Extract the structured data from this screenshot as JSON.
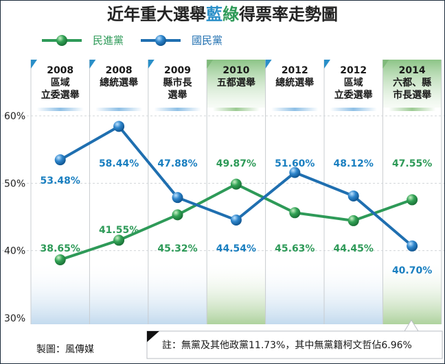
{
  "chart_data": {
    "type": "line",
    "title_parts": [
      {
        "text": "近年重大選舉",
        "highlight": ""
      },
      {
        "text": "藍",
        "highlight": "blue"
      },
      {
        "text": "綠",
        "highlight": "green"
      },
      {
        "text": "得票率走勢圖",
        "highlight": ""
      }
    ],
    "categories": [
      [
        "2008",
        "區域",
        "立委選舉"
      ],
      [
        "2008",
        "總統選舉"
      ],
      [
        "2009",
        "縣市長",
        "選舉"
      ],
      [
        "2010",
        "五都選舉"
      ],
      [
        "2012",
        "總統選舉"
      ],
      [
        "2012",
        "區域",
        "立委選舉"
      ],
      [
        "2014",
        "六都、縣",
        "市長選舉"
      ]
    ],
    "category_theme": [
      "blue",
      "blue",
      "blue",
      "green",
      "blue",
      "blue",
      "green"
    ],
    "ylim": [
      30,
      60
    ],
    "yticks": [
      30,
      40,
      50,
      60
    ],
    "ytick_labels": [
      "30%",
      "40%",
      "50%",
      "60%"
    ],
    "grid": true,
    "legend_position": "top-left",
    "series": [
      {
        "name": "民進黨",
        "color": "#2e9a58",
        "values": [
          38.65,
          41.55,
          45.32,
          49.87,
          45.63,
          44.45,
          47.55
        ],
        "labels": [
          "38.65%",
          "41.55%",
          "45.32%",
          "49.87%",
          "45.63%",
          "44.45%",
          "47.55%"
        ]
      },
      {
        "name": "國民黨",
        "color": "#1f6fb0",
        "values": [
          53.48,
          58.44,
          47.88,
          44.54,
          51.6,
          48.12,
          40.7
        ],
        "labels": [
          "53.48%",
          "58.44%",
          "47.88%",
          "44.54%",
          "51.60%",
          "48.12%",
          "40.70%"
        ]
      }
    ],
    "note": "註：無黨及其他政黨11.73%，其中無黨籍柯文哲佔6.96%",
    "credit": "製圖：風傳媒"
  },
  "colors": {
    "blue_line": "#1f6fb0",
    "blue_label": "#1a7fc0",
    "green_line": "#2e9a58",
    "green_label": "#2e9a58",
    "header_blue": "#2a8fc8",
    "header_green": "#7fba7a",
    "grid": "#c8ccd0"
  }
}
